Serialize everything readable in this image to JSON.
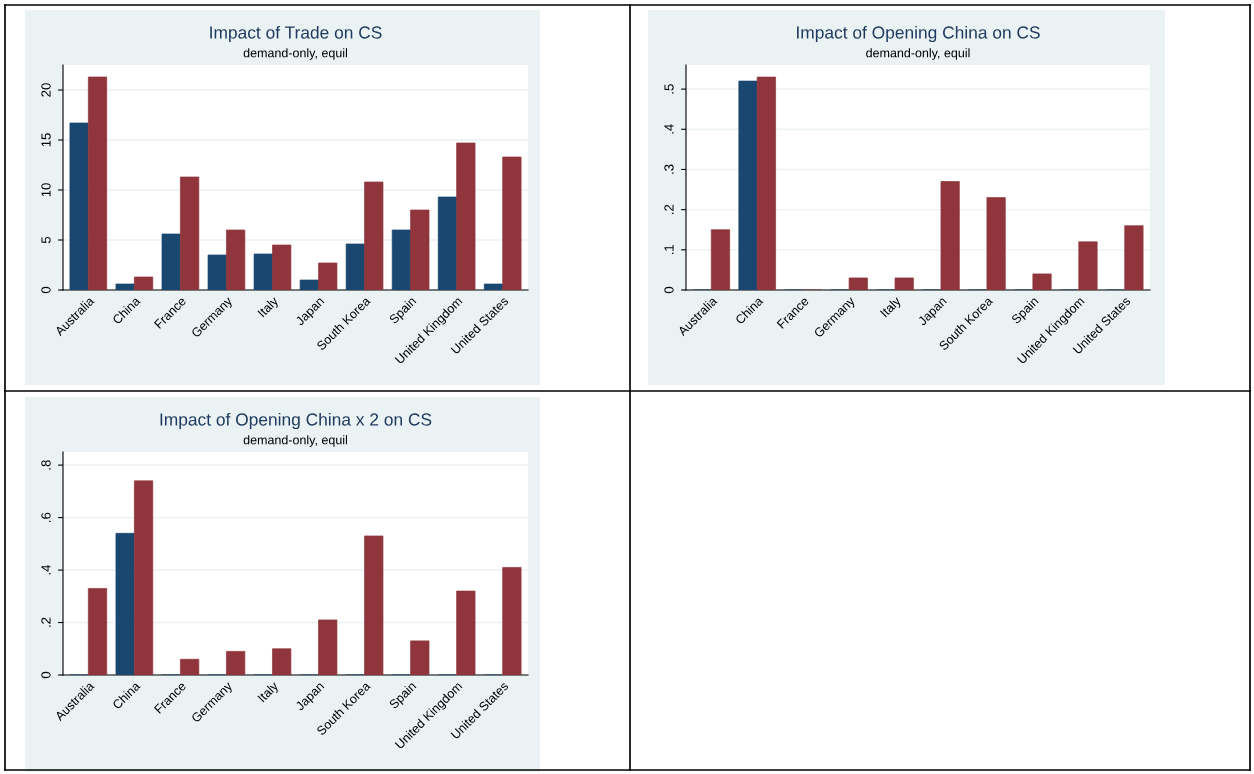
{
  "chart_data": [
    {
      "type": "bar",
      "title": "Impact of Trade on CS",
      "subtitle": "demand-only, equil",
      "categories": [
        "Australia",
        "China",
        "France",
        "Germany",
        "Italy",
        "Japan",
        "South Korea",
        "Spain",
        "United Kingdom",
        "United States"
      ],
      "series": [
        {
          "color": "#1a476f",
          "values": [
            16.7,
            0.6,
            5.6,
            3.5,
            3.6,
            1.0,
            4.6,
            6.0,
            9.3,
            0.6
          ]
        },
        {
          "color": "#90353b",
          "values": [
            21.3,
            1.3,
            11.3,
            6.0,
            4.5,
            2.7,
            10.8,
            8.0,
            14.7,
            13.3
          ]
        }
      ],
      "ylim": [
        0,
        22.5
      ],
      "yticks": [
        0,
        5,
        10,
        15,
        20
      ],
      "grid": "y",
      "legend": false
    },
    {
      "type": "bar",
      "title": "Impact of Opening China on CS",
      "subtitle": "demand-only, equil",
      "categories": [
        "Australia",
        "China",
        "France",
        "Germany",
        "Italy",
        "Japan",
        "South Korea",
        "Spain",
        "United Kingdom",
        "United States"
      ],
      "series": [
        {
          "color": "#1a476f",
          "values": [
            0,
            0.52,
            0,
            0,
            0,
            0,
            0,
            0,
            0,
            0
          ]
        },
        {
          "color": "#90353b",
          "values": [
            0.15,
            0.53,
            0,
            0.03,
            0.03,
            0.27,
            0.23,
            0.04,
            0.12,
            0.16
          ]
        }
      ],
      "ylim": [
        0,
        0.56
      ],
      "yticks": [
        0,
        {
          "value": 0.1,
          "label": ".1"
        },
        {
          "value": 0.2,
          "label": ".2"
        },
        {
          "value": 0.3,
          "label": ".3"
        },
        {
          "value": 0.4,
          "label": ".4"
        },
        {
          "value": 0.5,
          "label": ".5"
        }
      ],
      "grid": "y",
      "legend": false
    },
    {
      "type": "bar",
      "title": "Impact of Opening China x 2 on CS",
      "subtitle": "demand-only, equil",
      "categories": [
        "Australia",
        "China",
        "France",
        "Germany",
        "Italy",
        "Japan",
        "South Korea",
        "Spain",
        "United Kingdom",
        "United States"
      ],
      "series": [
        {
          "color": "#1a476f",
          "values": [
            0,
            0.54,
            0,
            0,
            0,
            0,
            0,
            0,
            0,
            0
          ]
        },
        {
          "color": "#90353b",
          "values": [
            0.33,
            0.74,
            0.06,
            0.09,
            0.1,
            0.21,
            0.53,
            0.13,
            0.32,
            0.41
          ]
        }
      ],
      "ylim": [
        0,
        0.85
      ],
      "yticks": [
        0,
        {
          "value": 0.2,
          "label": ".2"
        },
        {
          "value": 0.4,
          "label": ".4"
        },
        {
          "value": 0.6,
          "label": ".6"
        },
        {
          "value": 0.8,
          "label": ".8"
        }
      ],
      "grid": "y",
      "legend": false
    }
  ]
}
